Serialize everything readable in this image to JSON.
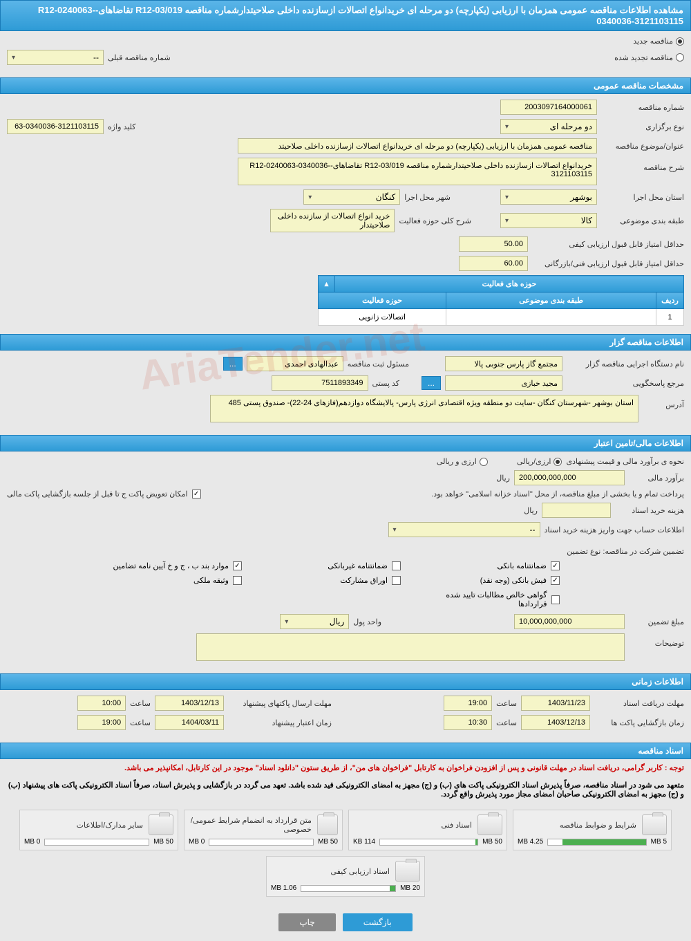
{
  "header": {
    "title": "مشاهده اطلاعات مناقصه عمومی همزمان با ارزیابی (یکپارچه) دو مرحله ای خریدانواع اتصالات ازسازنده داخلی صلاحیتدارشماره مناقصه R12-03/019 تقاضاهای-R12-0240063-0340036-3121103115"
  },
  "tender_type": {
    "new_label": "مناقصه جدید",
    "renewed_label": "مناقصه تجدید شده",
    "prev_number_label": "شماره مناقصه قبلی",
    "prev_number_value": "--"
  },
  "sections": {
    "general": "مشخصات مناقصه عمومی",
    "organizer": "اطلاعات مناقصه گزار",
    "financial": "اطلاعات مالی/تامین اعتبار",
    "timing": "اطلاعات زمانی",
    "documents": "اسناد مناقصه"
  },
  "general": {
    "tender_number_label": "شماره مناقصه",
    "tender_number": "2003097164000061",
    "holding_type_label": "نوع برگزاری",
    "holding_type": "دو مرحله ای",
    "keyword_label": "کلید واژه",
    "keyword": "63-0340036-3121103115",
    "subject_label": "عنوان/موضوع مناقصه",
    "subject": "مناقصه عمومی همزمان با ارزیابی (یکپارچه) دو مرحله ای خریدانواع اتصالات ازسازنده داخلی صلاحیتد",
    "description_label": "شرح مناقصه",
    "description": "خریدانواع اتصالات ازسازنده داخلی صلاحیتدارشماره مناقصه R12-03/019 تقاضاهای-R12-0240063-0340036-3121103115",
    "province_label": "استان محل اجرا",
    "province": "بوشهر",
    "city_label": "شهر محل اجرا",
    "city": "کنگان",
    "category_label": "طبقه بندی موضوعی",
    "category": "کالا",
    "activity_scope_label": "شرح کلی حوزه فعالیت",
    "activity_scope": "خرید انواع اتصالات از سازنده داخلی صلاحیتدار",
    "min_quality_score_label": "حداقل امتیاز قابل قبول ارزیابی کیفی",
    "min_quality_score": "50.00",
    "min_tech_score_label": "حداقل امتیاز قابل قبول ارزیابی فنی/بازرگانی",
    "min_tech_score": "60.00",
    "activity_table": {
      "title": "حوزه های فعالیت",
      "col_row": "ردیف",
      "col_category": "طبقه بندی موضوعی",
      "col_activity": "حوزه فعالیت",
      "rows": [
        {
          "n": "1",
          "category": "",
          "activity": "اتصالات زانویی"
        }
      ]
    }
  },
  "organizer": {
    "exec_device_label": "نام دستگاه اجرایی مناقصه گزار",
    "exec_device": "مجتمع گاز پارس جنوبی  پالا",
    "registrar_label": "مسئول ثبت مناقصه",
    "registrar": "عبدالهادی احمدی",
    "responder_label": "مرجع پاسخگویی",
    "responder": "مجید خبازی",
    "postal_code_label": "کد پستی",
    "postal_code": "7511893349",
    "address_label": "آدرس",
    "address": "استان بوشهر -شهرستان کنگان -سایت دو منطقه ویژه اقتصادی انرژی پارس- پالایشگاه دوازدهم(فازهای 24-22)- صندوق پستی 485"
  },
  "financial": {
    "estimate_method_label": "نحوه ی برآورد مالی و قیمت پیشنهادی",
    "currency_rial_label": "ارزی/ریالی",
    "currency_both_label": "ارزی و ریالی",
    "estimate_label": "برآورد مالی",
    "estimate_value": "200,000,000,000",
    "estimate_unit": "ریال",
    "payment_note": "پرداخت تمام و یا بخشی از مبلغ مناقصه، از محل \"اسناد خزانه اسلامی\" خواهد بود.",
    "swap_note_label": "امکان تعویض پاکت ج تا قبل از جلسه بازگشایی پاکت مالی",
    "doc_cost_label": "هزینه خرید اسناد",
    "doc_cost_unit": "ریال",
    "account_info_label": "اطلاعات حساب جهت واریز هزینه خرید اسناد",
    "account_info_value": "--",
    "guarantee_type_label": "تضمین شرکت در مناقصه:   نوع تضمین",
    "checks": {
      "bank_guarantee": "ضمانتنامه بانکی",
      "nonbank_guarantee": "ضمانتنامه غیربانکی",
      "items_bpjkh": "موارد بند ب ، ج و خ آیین نامه تضامین",
      "bank_receipt": "فیش بانکی (وجه نقد)",
      "participation_bonds": "اوراق مشارکت",
      "property_deed": "وثیقه ملکی",
      "contract_receivables": "گواهی خالص مطالبات تایید شده قراردادها"
    },
    "guarantee_amount_label": "مبلغ تضمین",
    "guarantee_amount": "10,000,000,000",
    "currency_unit_label": "واحد پول",
    "currency_unit": "ریال",
    "notes_label": "توضیحات"
  },
  "timing": {
    "doc_deadline_label": "مهلت دریافت اسناد",
    "doc_deadline_date": "1403/11/23",
    "doc_deadline_time_label": "ساعت",
    "doc_deadline_time": "19:00",
    "send_deadline_label": "مهلت ارسال پاکتهای پیشنهاد",
    "send_deadline_date": "1403/12/13",
    "send_deadline_time_label": "ساعت",
    "send_deadline_time": "10:00",
    "opening_label": "زمان بازگشایی پاکت ها",
    "opening_date": "1403/12/13",
    "opening_time_label": "ساعت",
    "opening_time": "10:30",
    "validity_label": "زمان اعتبار پیشنهاد",
    "validity_date": "1404/03/11",
    "validity_time_label": "ساعت",
    "validity_time": "19:00"
  },
  "documents": {
    "warning1": "توجه : کاربر گرامی، دریافت اسناد در مهلت قانونی و پس از افزودن فراخوان به کارتابل \"فراخوان های من\"، از طریق ستون \"دانلود اسناد\" موجود در این کارتابل، امکانپذیر می باشد.",
    "warning2": "متعهد می شود در اسناد مناقصه، صرفاً پذیرش اسناد الکترونیکی پاکت های (ب) و (ج) مجهز به امضای الکترونیکی قید شده باشد. تعهد می گردد در بازگشایی و پذیرش اسناد، صرفاً اسناد الکترونیکی پاکت های پیشنهاد (ب) و (ج) مجهز به امضای الکترونیکی صاحبان امضای مجاز مورد پذیرش واقع گردد.",
    "files": [
      {
        "title": "شرایط و ضوابط مناقصه",
        "size": "4.25 MB",
        "max": "5 MB",
        "pct": 85
      },
      {
        "title": "اسناد فنی",
        "size": "114 KB",
        "max": "50 MB",
        "pct": 2
      },
      {
        "title": "متن قرارداد به انضمام شرایط عمومی/خصوصی",
        "size": "0 MB",
        "max": "50 MB",
        "pct": 0
      },
      {
        "title": "سایر مدارک/اطلاعات",
        "size": "0 MB",
        "max": "50 MB",
        "pct": 0
      },
      {
        "title": "اسناد ارزیابی کیفی",
        "size": "1.06 MB",
        "max": "20 MB",
        "pct": 6
      }
    ]
  },
  "buttons": {
    "back": "بازگشت",
    "print": "چاپ"
  },
  "colors": {
    "header_bg": "#2e9bd6",
    "field_bg": "#f5f5c8",
    "page_bg": "#e8e8e8",
    "warn_color": "#cc0000"
  }
}
